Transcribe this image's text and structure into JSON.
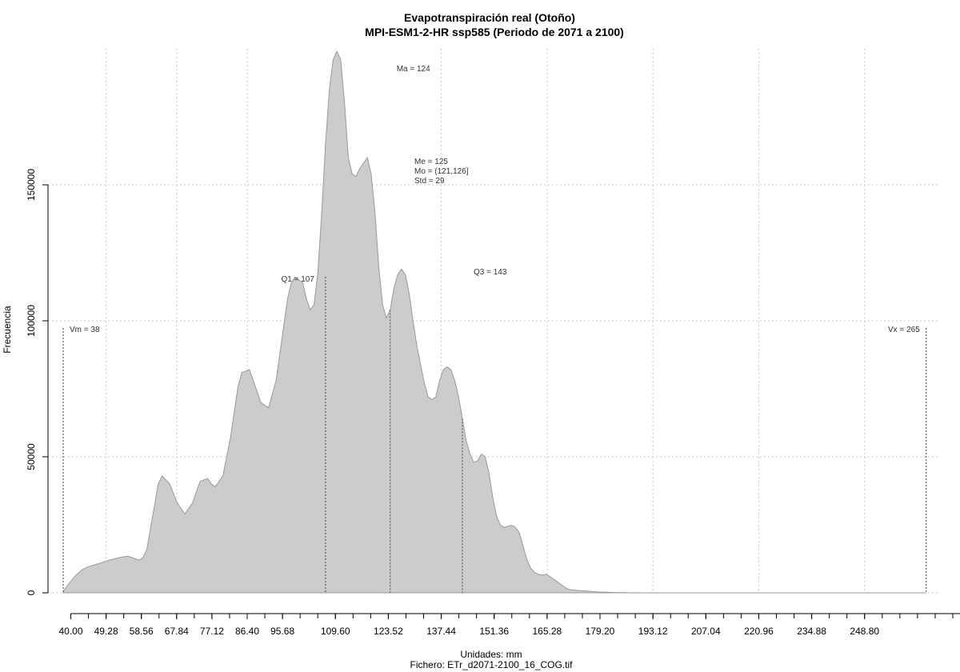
{
  "chart_data": {
    "type": "area",
    "title": "Evapotranspiración real (Otoño)",
    "subtitle": "MPI-ESM1-2-HR ssp585 (Periodo de 2071 a 2100)",
    "xlabel": "Unidades: mm",
    "caption": "Fichero: ETr_d2071-2100_16_COG.tif",
    "ylabel": "Frecuencia",
    "xlim": [
      34,
      268
    ],
    "ylim": [
      0,
      200000
    ],
    "x_ticks": [
      "40.00",
      "49.28",
      "58.56",
      "67.84",
      "77.12",
      "86.40",
      "95.68",
      "109.60",
      "123.52",
      "137.44",
      "151.36",
      "165.28",
      "179.20",
      "193.12",
      "207.04",
      "220.96",
      "234.88",
      "248.80"
    ],
    "y_ticks": [
      "0",
      "50000",
      "100000",
      "150000"
    ],
    "grid": true,
    "fill_color": "#cccccc",
    "line_color": "#999999",
    "x": [
      38,
      39,
      41,
      43,
      45,
      48,
      50,
      53,
      55,
      57,
      58,
      59,
      60,
      61,
      62,
      63,
      64,
      66,
      68,
      70,
      72,
      74,
      76,
      77,
      78,
      80,
      82,
      84,
      85,
      87,
      88,
      90,
      92,
      94,
      96,
      97,
      98,
      99,
      101,
      102,
      103,
      104,
      105,
      106,
      107,
      108,
      109,
      110,
      111,
      112,
      113,
      114,
      115,
      116,
      117,
      118,
      119,
      120,
      121,
      122,
      123,
      124,
      125,
      126,
      127,
      128,
      129,
      130,
      131,
      132,
      133,
      134,
      135,
      136,
      137,
      138,
      139,
      140,
      141,
      142,
      143,
      144,
      145,
      146,
      147,
      148,
      149,
      150,
      151,
      152,
      153,
      154,
      155,
      156,
      157,
      158,
      159,
      160,
      161,
      162,
      163,
      164,
      165,
      166,
      167,
      168,
      169,
      170,
      171,
      173,
      175,
      177,
      179,
      181,
      183,
      185,
      187,
      190,
      192,
      195,
      198,
      201,
      205,
      210,
      215,
      220,
      225,
      230,
      240,
      250,
      260,
      265
    ],
    "y": [
      500,
      2500,
      6000,
      8500,
      9800,
      11000,
      12000,
      13000,
      13500,
      12500,
      12000,
      13000,
      16000,
      24000,
      32000,
      40000,
      43000,
      40000,
      33000,
      29000,
      33000,
      41000,
      42000,
      40000,
      39000,
      43000,
      57000,
      76000,
      81000,
      82000,
      78000,
      70000,
      68000,
      78000,
      98000,
      108000,
      114000,
      116000,
      114000,
      108000,
      104000,
      106000,
      118000,
      140000,
      165000,
      185000,
      196000,
      199000,
      196000,
      180000,
      160000,
      154000,
      153000,
      156000,
      158000,
      160000,
      154000,
      140000,
      120000,
      106000,
      101000,
      104000,
      112000,
      117000,
      119000,
      117000,
      110000,
      100000,
      91000,
      84000,
      77000,
      72000,
      71000,
      72000,
      78000,
      82000,
      83000,
      82000,
      78000,
      72000,
      64000,
      56000,
      51000,
      48000,
      48500,
      51000,
      50000,
      44000,
      35000,
      28000,
      25000,
      24000,
      24500,
      24800,
      24000,
      22000,
      17000,
      12000,
      9000,
      7500,
      6800,
      6500,
      6800,
      6000,
      5000,
      4000,
      3000,
      2000,
      1200,
      900,
      700,
      500,
      300,
      200,
      120,
      60,
      30,
      10,
      0,
      0,
      0,
      0,
      0,
      0,
      0,
      0,
      0,
      0,
      0,
      0,
      0,
      0
    ],
    "markers": [
      {
        "label": "Vm = 38",
        "x": 38
      },
      {
        "label": "Q1 = 107",
        "x": 107
      },
      {
        "label": "Ma = 124",
        "x": 124
      },
      {
        "label": "Q3 = 143",
        "x": 143
      },
      {
        "label": "Vx = 265",
        "x": 265
      }
    ],
    "stats": [
      "Me = 125",
      "Mo = (121,126]",
      "Std = 29"
    ]
  }
}
